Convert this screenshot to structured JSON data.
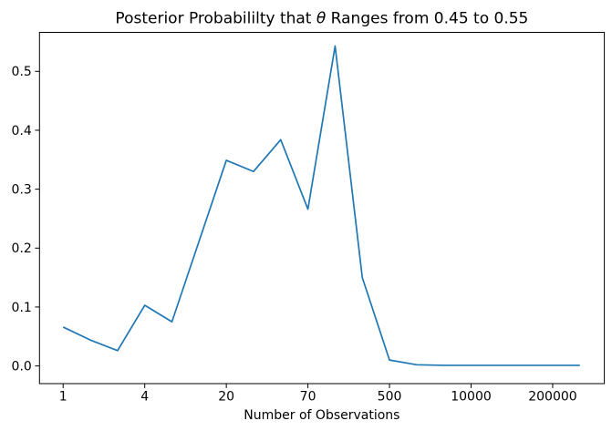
{
  "chart_data": {
    "type": "line",
    "title": "Posterior Probabililty that θ Ranges from 0.45 to 0.55",
    "title_parts": {
      "pre": "Posterior Probabililty that ",
      "theta": "θ",
      "post": " Ranges from 0.45 to 0.55"
    },
    "xlabel": "Number of Observations",
    "ylabel": "",
    "x_index": [
      0,
      1,
      2,
      3,
      4,
      5,
      6,
      7,
      8,
      9,
      10,
      11,
      12,
      13,
      14,
      15,
      16,
      17,
      18,
      19
    ],
    "values": [
      0.066,
      0.044,
      0.026,
      0.103,
      0.075,
      0.212,
      0.349,
      0.33,
      0.384,
      0.266,
      0.543,
      0.15,
      0.01,
      0.002,
      0.001,
      0.001,
      0.001,
      0.001,
      0.001,
      0.001
    ],
    "x_tick_indices": [
      0,
      3,
      6,
      9,
      12,
      15,
      18
    ],
    "x_tick_labels": [
      "1",
      "4",
      "20",
      "70",
      "500",
      "10000",
      "200000"
    ],
    "y_ticks": [
      0.0,
      0.1,
      0.2,
      0.3,
      0.4,
      0.5
    ],
    "y_tick_labels": [
      "0.0",
      "0.1",
      "0.2",
      "0.3",
      "0.4",
      "0.5"
    ],
    "xlim": [
      -0.87,
      19.9
    ],
    "ylim": [
      -0.03,
      0.5662
    ],
    "grid": false,
    "legend": null,
    "line_color": "#1f77b4",
    "axis_color": "#000000",
    "background_color": "#ffffff"
  }
}
